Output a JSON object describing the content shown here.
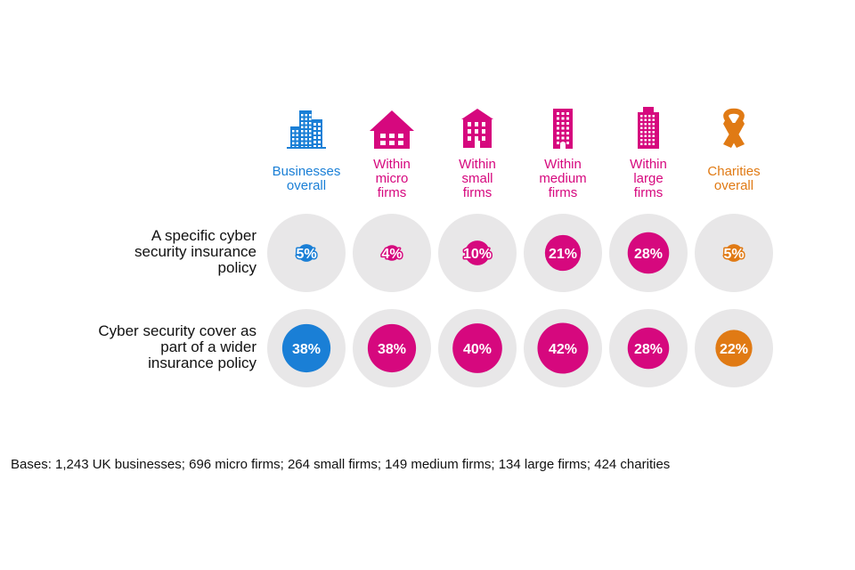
{
  "chart_data": {
    "type": "proportional-circle-matrix",
    "title": "",
    "colors": {
      "businesses": "#1a7fd6",
      "firms": "#d6087e",
      "charities": "#e07a14",
      "track": "#e8e7e8"
    },
    "categories": [
      {
        "key": "businesses",
        "label_lines": [
          "Businesses",
          "overall"
        ],
        "icon": "office-buildings-icon",
        "color_key": "businesses"
      },
      {
        "key": "micro",
        "label_lines": [
          "Within",
          "micro",
          "firms"
        ],
        "icon": "house-icon",
        "color_key": "firms"
      },
      {
        "key": "small",
        "label_lines": [
          "Within",
          "small",
          "firms"
        ],
        "icon": "small-building-icon",
        "color_key": "firms"
      },
      {
        "key": "medium",
        "label_lines": [
          "Within",
          "medium",
          "firms"
        ],
        "icon": "medium-building-icon",
        "color_key": "firms"
      },
      {
        "key": "large",
        "label_lines": [
          "Within",
          "large",
          "firms"
        ],
        "icon": "tower-icon",
        "color_key": "firms"
      },
      {
        "key": "charities",
        "label_lines": [
          "Charities",
          "overall"
        ],
        "icon": "awareness-ribbon-icon",
        "color_key": "charities"
      }
    ],
    "series": [
      {
        "name": "A specific cyber security insurance policy",
        "label_lines": [
          "A specific cyber",
          "security insurance",
          "policy"
        ],
        "values": [
          5,
          4,
          10,
          21,
          28,
          5
        ],
        "value_labels": [
          "5%",
          "4%",
          "10%",
          "21%",
          "28%",
          "5%"
        ]
      },
      {
        "name": "Cyber security cover as part of a wider insurance policy",
        "label_lines": [
          "Cyber security cover as",
          "part of a wider",
          "insurance policy"
        ],
        "values": [
          38,
          38,
          40,
          42,
          28,
          22
        ],
        "value_labels": [
          "38%",
          "38%",
          "40%",
          "42%",
          "28%",
          "22%"
        ]
      }
    ],
    "value_max": 100,
    "footnote": "Bases: 1,243 UK businesses; 696 micro firms; 264 small firms; 149 medium firms; 134 large firms; 424 charities"
  }
}
